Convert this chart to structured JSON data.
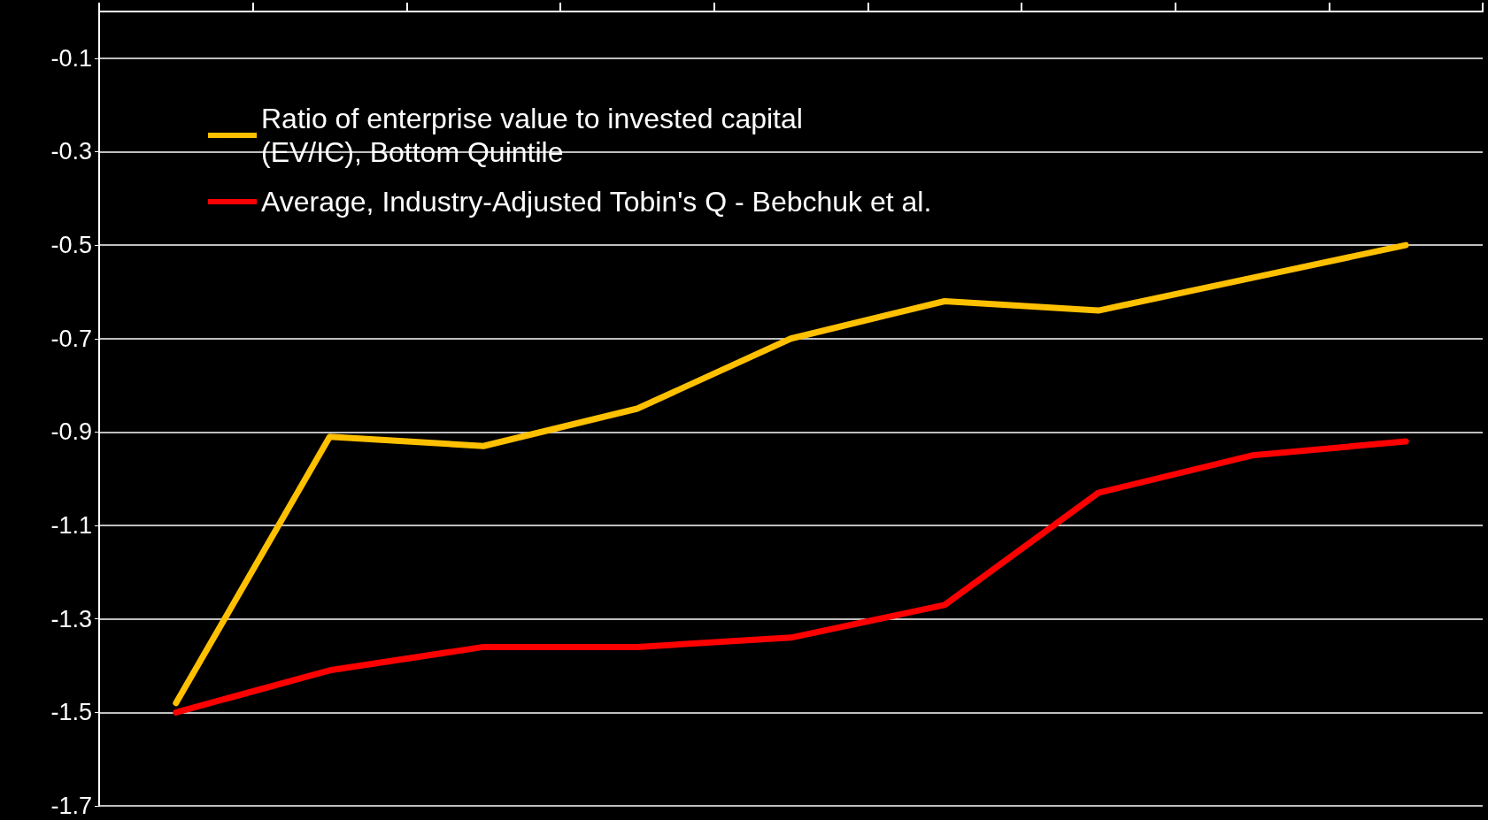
{
  "chart_data": {
    "type": "line",
    "categories": [
      null,
      null,
      null,
      null,
      null,
      null,
      null,
      null,
      null
    ],
    "series": [
      {
        "name": "Ratio of enterprise value to invested capital\n(EV/IC), Bottom Quintile",
        "color": "#ffc000",
        "values": [
          -1.48,
          -0.91,
          -0.93,
          -0.85,
          -0.7,
          -0.62,
          -0.64,
          -0.57,
          -0.5
        ]
      },
      {
        "name": "Average, Industry-Adjusted Tobin's Q - Bebchuk et al.",
        "color": "#ff0000",
        "values": [
          -1.5,
          -1.41,
          -1.36,
          -1.36,
          -1.34,
          -1.27,
          -1.03,
          -0.95,
          -0.92
        ]
      }
    ],
    "ylim": [
      -1.7,
      0
    ],
    "yticks": [
      -1.7,
      -1.5,
      -1.3,
      -1.1,
      -0.9,
      -0.7,
      -0.5,
      -0.3,
      -0.1
    ],
    "grid": "y",
    "legend": "top left",
    "marker": "none",
    "line_style": "solid"
  }
}
